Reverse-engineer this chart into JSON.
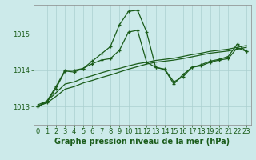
{
  "xlabel": "Graphe pression niveau de la mer (hPa)",
  "background_color": "#cceaea",
  "grid_color": "#aacfcf",
  "line_color": "#1a5c1a",
  "xlim": [
    -0.5,
    23.5
  ],
  "ylim": [
    1012.5,
    1015.8
  ],
  "yticks": [
    1013,
    1014,
    1015
  ],
  "xticks": [
    0,
    1,
    2,
    3,
    4,
    5,
    6,
    7,
    8,
    9,
    10,
    11,
    12,
    13,
    14,
    15,
    16,
    17,
    18,
    19,
    20,
    21,
    22,
    23
  ],
  "series1_x": [
    0,
    1,
    2,
    3,
    4,
    5,
    6,
    7,
    8,
    9,
    10,
    11,
    12,
    13,
    14,
    15,
    16,
    17,
    18,
    19,
    20,
    21,
    22,
    23
  ],
  "series1_y": [
    1013.0,
    1013.15,
    1013.55,
    1014.0,
    1014.0,
    1014.05,
    1014.25,
    1014.45,
    1014.65,
    1015.25,
    1015.62,
    1015.65,
    1015.05,
    1014.08,
    1014.03,
    1013.68,
    1013.82,
    1014.08,
    1014.15,
    1014.25,
    1014.3,
    1014.38,
    1014.72,
    1014.52
  ],
  "series2_x": [
    0,
    1,
    2,
    3,
    4,
    5,
    6,
    7,
    8,
    9,
    10,
    11,
    12,
    13,
    14,
    15,
    16,
    17,
    18,
    19,
    20,
    21,
    22,
    23
  ],
  "series2_y": [
    1013.0,
    1013.12,
    1013.5,
    1013.98,
    1013.95,
    1014.05,
    1014.18,
    1014.28,
    1014.32,
    1014.55,
    1015.05,
    1015.1,
    1014.22,
    1014.08,
    1014.02,
    1013.62,
    1013.88,
    1014.08,
    1014.12,
    1014.22,
    1014.28,
    1014.32,
    1014.62,
    1014.52
  ],
  "series3_x": [
    0,
    1,
    2,
    3,
    4,
    5,
    6,
    7,
    8,
    9,
    10,
    11,
    12,
    13,
    14,
    15,
    16,
    17,
    18,
    19,
    20,
    21,
    22,
    23
  ],
  "series3_y": [
    1013.02,
    1013.1,
    1013.28,
    1013.48,
    1013.55,
    1013.65,
    1013.72,
    1013.8,
    1013.87,
    1013.95,
    1014.03,
    1014.1,
    1014.17,
    1014.22,
    1014.25,
    1014.28,
    1014.32,
    1014.37,
    1014.42,
    1014.47,
    1014.5,
    1014.53,
    1014.58,
    1014.63
  ],
  "series4_x": [
    0,
    1,
    2,
    3,
    4,
    5,
    6,
    7,
    8,
    9,
    10,
    11,
    12,
    13,
    14,
    15,
    16,
    17,
    18,
    19,
    20,
    21,
    22,
    23
  ],
  "series4_y": [
    1013.05,
    1013.15,
    1013.38,
    1013.62,
    1013.68,
    1013.78,
    1013.85,
    1013.93,
    1014.0,
    1014.05,
    1014.12,
    1014.18,
    1014.22,
    1014.27,
    1014.3,
    1014.33,
    1014.38,
    1014.43,
    1014.47,
    1014.52,
    1014.55,
    1014.58,
    1014.63,
    1014.68
  ],
  "xlabel_fontsize": 7,
  "tick_fontsize": 6
}
